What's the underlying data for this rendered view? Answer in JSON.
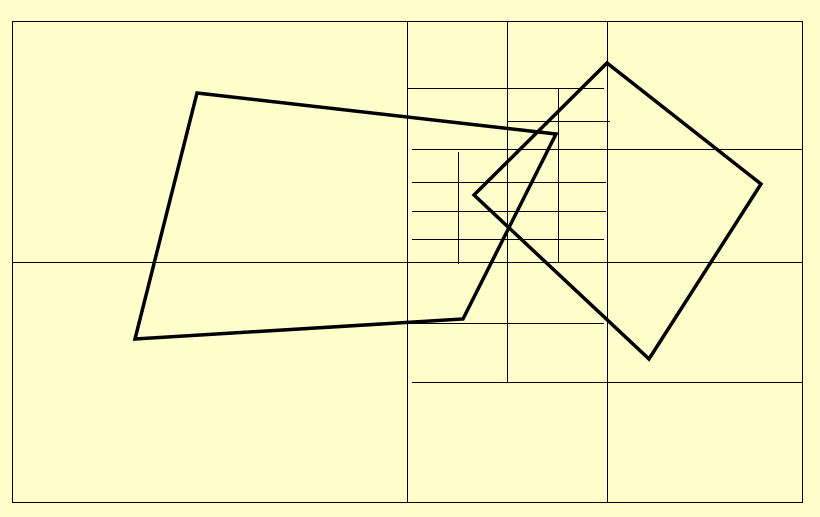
{
  "diagram": {
    "kind": "quadtree subdivision with overlapping quadrilaterals",
    "colors": {
      "background": "#ffffcc",
      "lines": "#000000"
    },
    "shapes": [
      {
        "name": "quadrilateral-left",
        "type": "quadrilateral"
      },
      {
        "name": "quadrilateral-right",
        "type": "quadrilateral"
      }
    ]
  }
}
